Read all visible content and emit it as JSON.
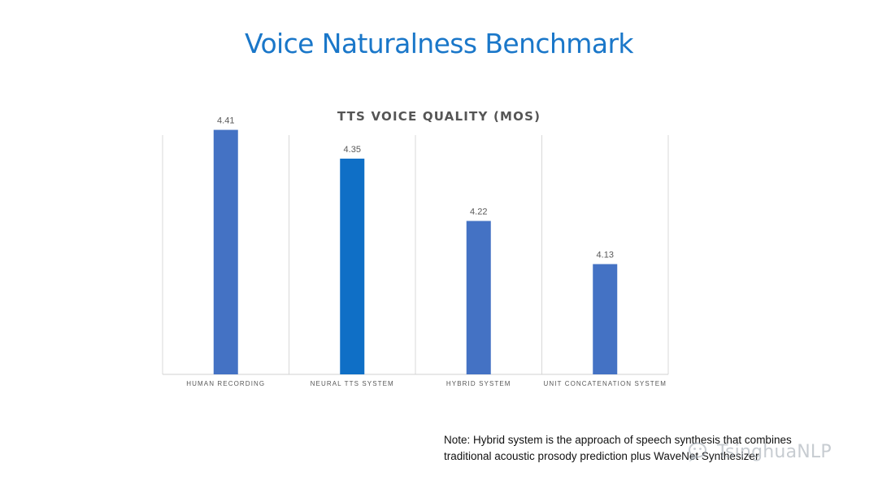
{
  "slide": {
    "title": "Voice Naturalness Benchmark",
    "note_line1": "Note: Hybrid system is the approach of speech synthesis that combines",
    "note_line2": "traditional acoustic prosody prediction plus WaveNet Synthesizer"
  },
  "watermark": {
    "text": "TsinghuaNLP",
    "icon": "wechat-icon"
  },
  "chart_data": {
    "type": "bar",
    "title": "TTS VOICE QUALITY (MOS)",
    "categories": [
      "HUMAN RECORDING",
      "NEURAL TTS SYSTEM",
      "HYBRID SYSTEM",
      "UNIT CONCATENATION SYSTEM"
    ],
    "values": [
      4.41,
      4.35,
      4.22,
      4.13
    ],
    "data_labels": [
      "4.41",
      "4.35",
      "4.22",
      "4.13"
    ],
    "colors": [
      "#4472c4",
      "#0f6fc6",
      "#4472c4",
      "#4472c4"
    ],
    "ylim": [
      3.9,
      4.45
    ],
    "grid": "vertical separators",
    "legend": "none"
  }
}
